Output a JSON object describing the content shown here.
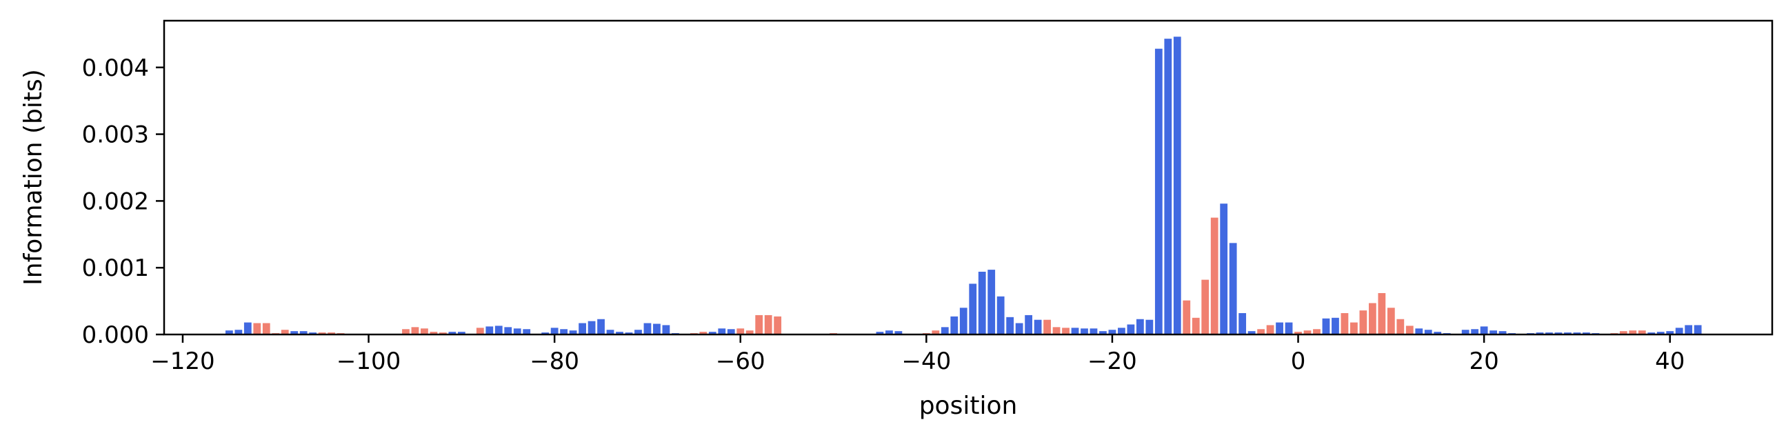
{
  "chart_data": {
    "type": "bar",
    "xlabel": "position",
    "ylabel": "Information (bits)",
    "xlim": [
      -122,
      51
    ],
    "ylim": [
      0,
      0.0047
    ],
    "x_ticks": [
      -120,
      -100,
      -80,
      -60,
      -40,
      -20,
      0,
      20,
      40
    ],
    "x_tick_labels": [
      "−120",
      "−100",
      "−80",
      "−60",
      "−40",
      "−20",
      "0",
      "20",
      "40"
    ],
    "y_ticks": [
      0,
      0.001,
      0.002,
      0.003,
      0.004
    ],
    "y_tick_labels": [
      "0.000",
      "0.001",
      "0.002",
      "0.003",
      "0.004"
    ],
    "grid": false,
    "colors": {
      "blue": "#4169e1",
      "red": "#f08070"
    },
    "bars": [
      {
        "x": -115,
        "y": 6e-05,
        "c": "blue"
      },
      {
        "x": -114,
        "y": 7e-05,
        "c": "blue"
      },
      {
        "x": -113,
        "y": 0.00018,
        "c": "blue"
      },
      {
        "x": -112,
        "y": 0.00017,
        "c": "red"
      },
      {
        "x": -111,
        "y": 0.00017,
        "c": "red"
      },
      {
        "x": -110,
        "y": 2e-05,
        "c": "red"
      },
      {
        "x": -109,
        "y": 7e-05,
        "c": "red"
      },
      {
        "x": -108,
        "y": 5e-05,
        "c": "blue"
      },
      {
        "x": -107,
        "y": 5e-05,
        "c": "blue"
      },
      {
        "x": -106,
        "y": 3e-05,
        "c": "blue"
      },
      {
        "x": -105,
        "y": 3e-05,
        "c": "red"
      },
      {
        "x": -104,
        "y": 3e-05,
        "c": "red"
      },
      {
        "x": -103,
        "y": 2e-05,
        "c": "red"
      },
      {
        "x": -102,
        "y": 1e-05,
        "c": "red"
      },
      {
        "x": -101,
        "y": 1e-05,
        "c": "red"
      },
      {
        "x": -96,
        "y": 8e-05,
        "c": "red"
      },
      {
        "x": -95,
        "y": 0.00011,
        "c": "red"
      },
      {
        "x": -94,
        "y": 9e-05,
        "c": "red"
      },
      {
        "x": -93,
        "y": 4e-05,
        "c": "red"
      },
      {
        "x": -92,
        "y": 3e-05,
        "c": "red"
      },
      {
        "x": -91,
        "y": 4e-05,
        "c": "blue"
      },
      {
        "x": -90,
        "y": 4e-05,
        "c": "blue"
      },
      {
        "x": -89,
        "y": 1e-05,
        "c": "blue"
      },
      {
        "x": -88,
        "y": 0.0001,
        "c": "red"
      },
      {
        "x": -87,
        "y": 0.00012,
        "c": "blue"
      },
      {
        "x": -86,
        "y": 0.00013,
        "c": "blue"
      },
      {
        "x": -85,
        "y": 0.00011,
        "c": "blue"
      },
      {
        "x": -84,
        "y": 9e-05,
        "c": "blue"
      },
      {
        "x": -83,
        "y": 8e-05,
        "c": "blue"
      },
      {
        "x": -82,
        "y": 1e-05,
        "c": "blue"
      },
      {
        "x": -81,
        "y": 3e-05,
        "c": "blue"
      },
      {
        "x": -80,
        "y": 0.0001,
        "c": "blue"
      },
      {
        "x": -79,
        "y": 8e-05,
        "c": "blue"
      },
      {
        "x": -78,
        "y": 6e-05,
        "c": "blue"
      },
      {
        "x": -77,
        "y": 0.00017,
        "c": "blue"
      },
      {
        "x": -76,
        "y": 0.0002,
        "c": "blue"
      },
      {
        "x": -75,
        "y": 0.00023,
        "c": "blue"
      },
      {
        "x": -74,
        "y": 7e-05,
        "c": "blue"
      },
      {
        "x": -73,
        "y": 4e-05,
        "c": "blue"
      },
      {
        "x": -72,
        "y": 3e-05,
        "c": "blue"
      },
      {
        "x": -71,
        "y": 7e-05,
        "c": "blue"
      },
      {
        "x": -70,
        "y": 0.00017,
        "c": "blue"
      },
      {
        "x": -69,
        "y": 0.00016,
        "c": "blue"
      },
      {
        "x": -68,
        "y": 0.00014,
        "c": "blue"
      },
      {
        "x": -67,
        "y": 2e-05,
        "c": "blue"
      },
      {
        "x": -65,
        "y": 2e-05,
        "c": "red"
      },
      {
        "x": -64,
        "y": 4e-05,
        "c": "red"
      },
      {
        "x": -63,
        "y": 4e-05,
        "c": "blue"
      },
      {
        "x": -62,
        "y": 9e-05,
        "c": "blue"
      },
      {
        "x": -61,
        "y": 8e-05,
        "c": "blue"
      },
      {
        "x": -60,
        "y": 9e-05,
        "c": "red"
      },
      {
        "x": -59,
        "y": 6e-05,
        "c": "red"
      },
      {
        "x": -58,
        "y": 0.00029,
        "c": "red"
      },
      {
        "x": -57,
        "y": 0.00029,
        "c": "red"
      },
      {
        "x": -56,
        "y": 0.00027,
        "c": "red"
      },
      {
        "x": -55,
        "y": 1e-05,
        "c": "red"
      },
      {
        "x": -51,
        "y": 1e-05,
        "c": "red"
      },
      {
        "x": -50,
        "y": 2e-05,
        "c": "red"
      },
      {
        "x": -49,
        "y": 1e-05,
        "c": "blue"
      },
      {
        "x": -45,
        "y": 4e-05,
        "c": "blue"
      },
      {
        "x": -44,
        "y": 6e-05,
        "c": "blue"
      },
      {
        "x": -43,
        "y": 5e-05,
        "c": "blue"
      },
      {
        "x": -40,
        "y": 2e-05,
        "c": "red"
      },
      {
        "x": -39,
        "y": 6e-05,
        "c": "red"
      },
      {
        "x": -38,
        "y": 0.00011,
        "c": "blue"
      },
      {
        "x": -37,
        "y": 0.00027,
        "c": "blue"
      },
      {
        "x": -36,
        "y": 0.0004,
        "c": "blue"
      },
      {
        "x": -35,
        "y": 0.00076,
        "c": "blue"
      },
      {
        "x": -34,
        "y": 0.00094,
        "c": "blue"
      },
      {
        "x": -33,
        "y": 0.00097,
        "c": "blue"
      },
      {
        "x": -32,
        "y": 0.00057,
        "c": "blue"
      },
      {
        "x": -31,
        "y": 0.00026,
        "c": "blue"
      },
      {
        "x": -30,
        "y": 0.00017,
        "c": "blue"
      },
      {
        "x": -29,
        "y": 0.00029,
        "c": "blue"
      },
      {
        "x": -28,
        "y": 0.00022,
        "c": "blue"
      },
      {
        "x": -27,
        "y": 0.00022,
        "c": "red"
      },
      {
        "x": -26,
        "y": 0.00011,
        "c": "red"
      },
      {
        "x": -25,
        "y": 0.0001,
        "c": "red"
      },
      {
        "x": -24,
        "y": 0.0001,
        "c": "blue"
      },
      {
        "x": -23,
        "y": 9e-05,
        "c": "blue"
      },
      {
        "x": -22,
        "y": 9e-05,
        "c": "blue"
      },
      {
        "x": -21,
        "y": 5e-05,
        "c": "blue"
      },
      {
        "x": -20,
        "y": 7e-05,
        "c": "blue"
      },
      {
        "x": -19,
        "y": 0.0001,
        "c": "blue"
      },
      {
        "x": -18,
        "y": 0.00015,
        "c": "blue"
      },
      {
        "x": -17,
        "y": 0.00023,
        "c": "blue"
      },
      {
        "x": -16,
        "y": 0.00022,
        "c": "blue"
      },
      {
        "x": -15,
        "y": 0.00428,
        "c": "blue"
      },
      {
        "x": -14,
        "y": 0.00443,
        "c": "blue"
      },
      {
        "x": -13,
        "y": 0.00446,
        "c": "blue"
      },
      {
        "x": -12,
        "y": 0.00051,
        "c": "red"
      },
      {
        "x": -11,
        "y": 0.00025,
        "c": "red"
      },
      {
        "x": -10,
        "y": 0.00082,
        "c": "red"
      },
      {
        "x": -9,
        "y": 0.00175,
        "c": "red"
      },
      {
        "x": -8,
        "y": 0.00196,
        "c": "blue"
      },
      {
        "x": -7,
        "y": 0.00137,
        "c": "blue"
      },
      {
        "x": -6,
        "y": 0.00032,
        "c": "blue"
      },
      {
        "x": -5,
        "y": 5e-05,
        "c": "blue"
      },
      {
        "x": -4,
        "y": 8e-05,
        "c": "red"
      },
      {
        "x": -3,
        "y": 0.00014,
        "c": "red"
      },
      {
        "x": -2,
        "y": 0.00018,
        "c": "blue"
      },
      {
        "x": -1,
        "y": 0.00018,
        "c": "blue"
      },
      {
        "x": 0,
        "y": 4e-05,
        "c": "red"
      },
      {
        "x": 1,
        "y": 6e-05,
        "c": "red"
      },
      {
        "x": 2,
        "y": 8e-05,
        "c": "red"
      },
      {
        "x": 3,
        "y": 0.00024,
        "c": "blue"
      },
      {
        "x": 4,
        "y": 0.00025,
        "c": "blue"
      },
      {
        "x": 5,
        "y": 0.00032,
        "c": "red"
      },
      {
        "x": 6,
        "y": 0.00018,
        "c": "red"
      },
      {
        "x": 7,
        "y": 0.00036,
        "c": "red"
      },
      {
        "x": 8,
        "y": 0.00047,
        "c": "red"
      },
      {
        "x": 9,
        "y": 0.00062,
        "c": "red"
      },
      {
        "x": 10,
        "y": 0.0004,
        "c": "red"
      },
      {
        "x": 11,
        "y": 0.00023,
        "c": "red"
      },
      {
        "x": 12,
        "y": 0.00013,
        "c": "red"
      },
      {
        "x": 13,
        "y": 9e-05,
        "c": "blue"
      },
      {
        "x": 14,
        "y": 7e-05,
        "c": "blue"
      },
      {
        "x": 15,
        "y": 4e-05,
        "c": "blue"
      },
      {
        "x": 16,
        "y": 2e-05,
        "c": "blue"
      },
      {
        "x": 18,
        "y": 7e-05,
        "c": "blue"
      },
      {
        "x": 19,
        "y": 8e-05,
        "c": "blue"
      },
      {
        "x": 20,
        "y": 0.00012,
        "c": "blue"
      },
      {
        "x": 21,
        "y": 6e-05,
        "c": "blue"
      },
      {
        "x": 22,
        "y": 5e-05,
        "c": "blue"
      },
      {
        "x": 23,
        "y": 2e-05,
        "c": "blue"
      },
      {
        "x": 25,
        "y": 2e-05,
        "c": "blue"
      },
      {
        "x": 26,
        "y": 3e-05,
        "c": "blue"
      },
      {
        "x": 27,
        "y": 3e-05,
        "c": "blue"
      },
      {
        "x": 28,
        "y": 3e-05,
        "c": "blue"
      },
      {
        "x": 29,
        "y": 3e-05,
        "c": "blue"
      },
      {
        "x": 30,
        "y": 3e-05,
        "c": "blue"
      },
      {
        "x": 31,
        "y": 3e-05,
        "c": "blue"
      },
      {
        "x": 32,
        "y": 2e-05,
        "c": "blue"
      },
      {
        "x": 33,
        "y": 1e-05,
        "c": "blue"
      },
      {
        "x": 34,
        "y": 2e-05,
        "c": "red"
      },
      {
        "x": 35,
        "y": 5e-05,
        "c": "red"
      },
      {
        "x": 36,
        "y": 6e-05,
        "c": "red"
      },
      {
        "x": 37,
        "y": 6e-05,
        "c": "red"
      },
      {
        "x": 38,
        "y": 3e-05,
        "c": "blue"
      },
      {
        "x": 39,
        "y": 4e-05,
        "c": "blue"
      },
      {
        "x": 40,
        "y": 5e-05,
        "c": "blue"
      },
      {
        "x": 41,
        "y": 0.0001,
        "c": "blue"
      },
      {
        "x": 42,
        "y": 0.00014,
        "c": "blue"
      },
      {
        "x": 43,
        "y": 0.00014,
        "c": "blue"
      }
    ]
  }
}
